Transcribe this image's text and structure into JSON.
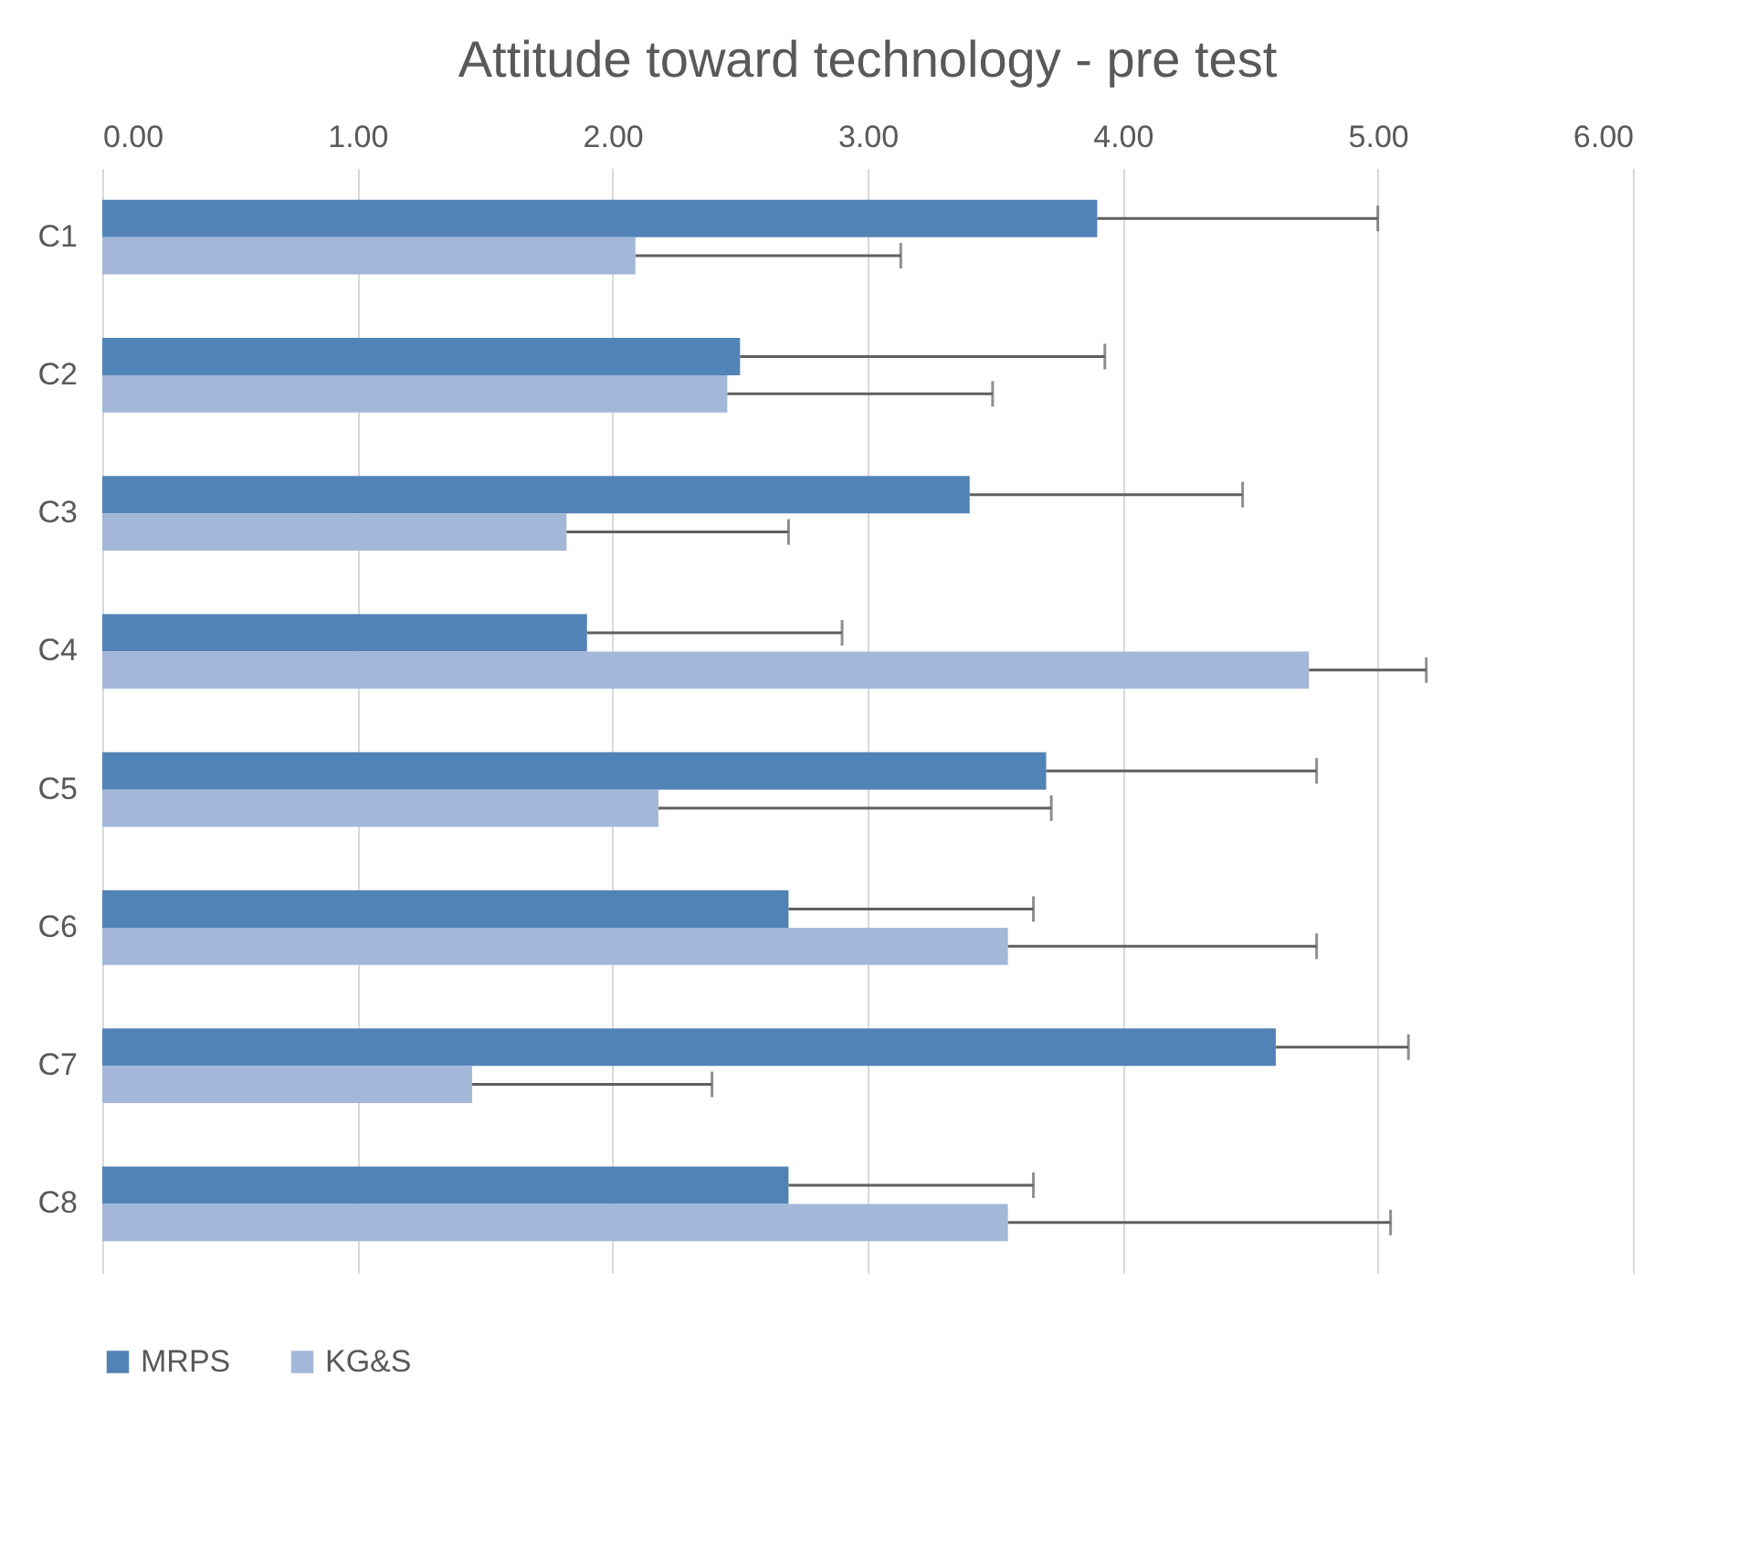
{
  "chart_data": {
    "type": "bar",
    "orientation": "horizontal",
    "title": "Attitude toward technology - pre test",
    "categories": [
      "C1",
      "C2",
      "C3",
      "C4",
      "C5",
      "C6",
      "C7",
      "C8"
    ],
    "series": [
      {
        "name": "MRPS",
        "color": "#5283b6",
        "values": [
          3.9,
          2.5,
          3.4,
          1.9,
          3.7,
          2.69,
          4.6,
          2.69
        ],
        "errors": [
          [
            3.9,
            5.0
          ],
          [
            2.5,
            3.93
          ],
          [
            3.4,
            4.47
          ],
          [
            1.9,
            2.9
          ],
          [
            3.7,
            4.76
          ],
          [
            2.69,
            3.65
          ],
          [
            4.6,
            5.12
          ],
          [
            2.69,
            3.65
          ]
        ]
      },
      {
        "name": "KG&S",
        "color": "#a3b7d9",
        "values": [
          2.09,
          2.45,
          1.82,
          4.73,
          2.18,
          3.55,
          1.45,
          3.55
        ],
        "errors": [
          [
            2.09,
            3.13
          ],
          [
            2.45,
            3.49
          ],
          [
            1.82,
            2.69
          ],
          [
            4.73,
            5.19
          ],
          [
            2.18,
            3.72
          ],
          [
            3.55,
            4.76
          ],
          [
            1.45,
            2.39
          ],
          [
            3.55,
            5.05
          ]
        ]
      }
    ],
    "xlim": [
      0,
      6
    ],
    "xticks": [
      {
        "value": 0,
        "label": "0.00"
      },
      {
        "value": 1,
        "label": "1.00"
      },
      {
        "value": 2,
        "label": "2.00"
      },
      {
        "value": 3,
        "label": "3.00"
      },
      {
        "value": 4,
        "label": "4.00"
      },
      {
        "value": 5,
        "label": "5.00"
      },
      {
        "value": 6,
        "label": "6.00"
      }
    ],
    "grid": "x",
    "legend": "bottom"
  }
}
